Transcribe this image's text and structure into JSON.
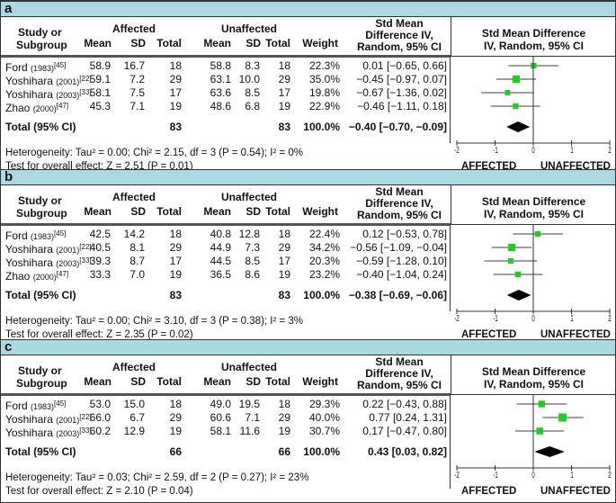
{
  "chart_data": {
    "type": "forest",
    "headers": {
      "study_1": "Study or",
      "study_2": "Subgroup",
      "affected": "Affected",
      "unaffected": "Unaffected",
      "mean": "Mean",
      "sd": "SD",
      "total": "Total",
      "weight": "Weight",
      "smd_1": "Std Mean",
      "smd_2": "Difference IV,",
      "smd_3": "Random, 95% CI",
      "plot_1": "Std Mean Difference",
      "plot_2": "IV, Random, 95% CI"
    },
    "axis": {
      "xlim": [
        -2,
        2
      ],
      "ticks": [
        "-2",
        "-1",
        "0",
        "1",
        "2"
      ],
      "left_label": "AFFECTED",
      "right_label": "UNAFFECTED"
    },
    "colors": {
      "band": "#acd8e4",
      "square": "#22cc22",
      "diamond": "#000000"
    },
    "panels": [
      {
        "label": "a",
        "studies": [
          {
            "name": "Ford",
            "year": "(1983)",
            "ref": "[45]",
            "am": "58.9",
            "asd": "16.7",
            "at": "18",
            "um": "58.8",
            "usd": "8.3",
            "ut": "18",
            "weight": "22.3%",
            "ci": "0.01 [−0.65, 0.66]",
            "smd": 0.01,
            "lo": -0.65,
            "hi": 0.66,
            "w": 22.3
          },
          {
            "name": "Yoshihara",
            "year": "(2001)",
            "ref": "[22]",
            "am": "59.1",
            "asd": "7.2",
            "at": "29",
            "um": "63.1",
            "usd": "10.0",
            "ut": "29",
            "weight": "35.0%",
            "ci": "−0.45 [−0.97, 0.07]",
            "smd": -0.45,
            "lo": -0.97,
            "hi": 0.07,
            "w": 35.0
          },
          {
            "name": "Yoshihara",
            "year": "(2003)",
            "ref": "[33]",
            "am": "58.1",
            "asd": "7.5",
            "at": "17",
            "um": "63.6",
            "usd": "8.5",
            "ut": "17",
            "weight": "19.8%",
            "ci": "−0.67 [−1.36, 0.02]",
            "smd": -0.67,
            "lo": -1.36,
            "hi": 0.02,
            "w": 19.8
          },
          {
            "name": "Zhao",
            "year": "(2000)",
            "ref": "[47]",
            "am": "45.3",
            "asd": "7.1",
            "at": "19",
            "um": "48.6",
            "usd": "6.8",
            "ut": "19",
            "weight": "22.9%",
            "ci": "−0.46 [−1.11, 0.18]",
            "smd": -0.46,
            "lo": -1.11,
            "hi": 0.18,
            "w": 22.9
          }
        ],
        "total": {
          "label": "Total (95% CI)",
          "at": "83",
          "ut": "83",
          "weight": "100.0%",
          "ci": "−0.40 [−0.70, −0.09]",
          "smd": -0.4,
          "lo": -0.7,
          "hi": -0.09
        },
        "heterogeneity": "Heterogeneity: Tau² = 0.00; Chi² = 2.15, df = 3 (P = 0.54); I² = 0%",
        "overall": "Test for overall effect: Z = 2.51 (P = 0.01)"
      },
      {
        "label": "b",
        "studies": [
          {
            "name": "Ford",
            "year": "(1983)",
            "ref": "[45]",
            "am": "42.5",
            "asd": "14.2",
            "at": "18",
            "um": "40.8",
            "usd": "12.8",
            "ut": "18",
            "weight": "22.4%",
            "ci": "0.12 [−0.53, 0.78]",
            "smd": 0.12,
            "lo": -0.53,
            "hi": 0.78,
            "w": 22.4
          },
          {
            "name": "Yoshihara",
            "year": "(2001)",
            "ref": "[22]",
            "am": "40.5",
            "asd": "8.1",
            "at": "29",
            "um": "44.9",
            "usd": "7.3",
            "ut": "29",
            "weight": "34.2%",
            "ci": "−0.56 [−1.09, −0.04]",
            "smd": -0.56,
            "lo": -1.09,
            "hi": -0.04,
            "w": 34.2
          },
          {
            "name": "Yoshihara",
            "year": "(2003)",
            "ref": "[33]",
            "am": "39.3",
            "asd": "8.7",
            "at": "17",
            "um": "44.5",
            "usd": "8.5",
            "ut": "17",
            "weight": "20.3%",
            "ci": "−0.59 [−1.28, 0.10]",
            "smd": -0.59,
            "lo": -1.28,
            "hi": 0.1,
            "w": 20.3
          },
          {
            "name": "Zhao",
            "year": "(2000)",
            "ref": "[47]",
            "am": "33.3",
            "asd": "7.0",
            "at": "19",
            "um": "36.5",
            "usd": "8.6",
            "ut": "19",
            "weight": "23.2%",
            "ci": "−0.40 [−1.04, 0.24]",
            "smd": -0.4,
            "lo": -1.04,
            "hi": 0.24,
            "w": 23.2
          }
        ],
        "total": {
          "label": "Total (95% CI)",
          "at": "83",
          "ut": "83",
          "weight": "100.0%",
          "ci": "−0.38 [−0.69, −0.06]",
          "smd": -0.38,
          "lo": -0.69,
          "hi": -0.06
        },
        "heterogeneity": "Heterogeneity: Tau² = 0.00; Chi² = 3.10, df = 3 (P = 0.38); I² = 3%",
        "overall": "Test for overall effect: Z = 2.35 (P = 0.02)"
      },
      {
        "label": "c",
        "studies": [
          {
            "name": "Ford",
            "year": "(1983)",
            "ref": "[45]",
            "am": "53.0",
            "asd": "15.0",
            "at": "18",
            "um": "49.0",
            "usd": "19.5",
            "ut": "18",
            "weight": "29.3%",
            "ci": "0.22 [−0.43, 0.88]",
            "smd": 0.22,
            "lo": -0.43,
            "hi": 0.88,
            "w": 29.3
          },
          {
            "name": "Yoshihara",
            "year": "(2001)",
            "ref": "[22]",
            "am": "66.0",
            "asd": "6.7",
            "at": "29",
            "um": "60.6",
            "usd": "7.1",
            "ut": "29",
            "weight": "40.0%",
            "ci": "0.77 [0.24, 1.31]",
            "smd": 0.77,
            "lo": 0.24,
            "hi": 1.31,
            "w": 40.0
          },
          {
            "name": "Yoshihara",
            "year": "(2003)",
            "ref": "[33]",
            "am": "60.2",
            "asd": "12.9",
            "at": "19",
            "um": "58.1",
            "usd": "11.6",
            "ut": "19",
            "weight": "30.7%",
            "ci": "0.17 [−0.47, 0.80]",
            "smd": 0.17,
            "lo": -0.47,
            "hi": 0.8,
            "w": 30.7
          }
        ],
        "total": {
          "label": "Total (95% CI)",
          "at": "66",
          "ut": "66",
          "weight": "100.0%",
          "ci": "0.43 [0.03, 0.82]",
          "smd": 0.43,
          "lo": 0.03,
          "hi": 0.82
        },
        "heterogeneity": "Heterogeneity: Tau² = 0.03; Chi² = 2.59, df = 2 (P = 0.27); I² = 23%",
        "overall": "Test for overall effect: Z = 2.10 (P = 0.04)"
      }
    ]
  }
}
